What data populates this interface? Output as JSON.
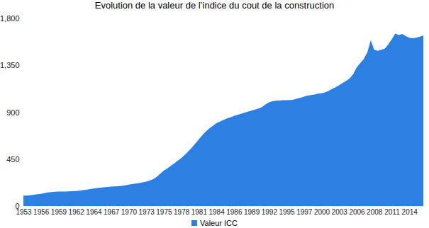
{
  "chart_data": {
    "type": "area",
    "title": "Evolution de la valeur de l’indice du cout de la construction",
    "categories": [
      "1953",
      null,
      null,
      null,
      null,
      "1956",
      null,
      null,
      null,
      null,
      "1959",
      null,
      null,
      null,
      null,
      "1962",
      null,
      null,
      null,
      null,
      "1964",
      null,
      null,
      null,
      null,
      "1967",
      null,
      null,
      null,
      null,
      "1970",
      null,
      null,
      null,
      null,
      "1973",
      null,
      null,
      null,
      null,
      "1975",
      null,
      null,
      null,
      null,
      "1978",
      null,
      null,
      null,
      null,
      "1981",
      null,
      null,
      null,
      null,
      "1984",
      null,
      null,
      null,
      null,
      "1986",
      null,
      null,
      null,
      null,
      "1989",
      null,
      null,
      null,
      null,
      "1992",
      null,
      null,
      null,
      null,
      "1995",
      null,
      null,
      null,
      null,
      "1997",
      null,
      null,
      null,
      null,
      "2000",
      null,
      null,
      null,
      null,
      "2003",
      null,
      null,
      null,
      null,
      "2006",
      null,
      null,
      null,
      null,
      "2008",
      null,
      null,
      null,
      null,
      "2011",
      null,
      null,
      null,
      null,
      "2014",
      null,
      null,
      null,
      null
    ],
    "series": [
      {
        "name": "Valeur ICC",
        "color": "#2b80e2",
        "values": [
          100,
          101,
          104,
          108,
          113,
          118,
          124,
          130,
          134,
          137,
          139,
          140,
          140,
          141,
          143,
          145,
          148,
          152,
          157,
          163,
          168,
          173,
          177,
          180,
          183,
          186,
          188,
          190,
          193,
          198,
          205,
          211,
          216,
          221,
          227,
          235,
          245,
          258,
          280,
          310,
          340,
          360,
          385,
          410,
          435,
          460,
          490,
          525,
          560,
          600,
          640,
          680,
          715,
          745,
          770,
          795,
          810,
          825,
          840,
          850,
          865,
          875,
          885,
          895,
          905,
          915,
          925,
          935,
          950,
          975,
          995,
          1005,
          1010,
          1012,
          1015,
          1015,
          1018,
          1020,
          1030,
          1040,
          1050,
          1060,
          1065,
          1070,
          1078,
          1082,
          1090,
          1105,
          1125,
          1140,
          1160,
          1180,
          1200,
          1225,
          1265,
          1330,
          1370,
          1410,
          1470,
          1590,
          1500,
          1490,
          1500,
          1510,
          1550,
          1600,
          1655,
          1640,
          1650,
          1630,
          1615,
          1610,
          1615,
          1625,
          1635
        ]
      }
    ],
    "ylim": [
      0,
      1800
    ],
    "yticks": [
      0,
      450,
      900,
      1350,
      1800
    ],
    "grid": false,
    "legend": "bottom"
  }
}
